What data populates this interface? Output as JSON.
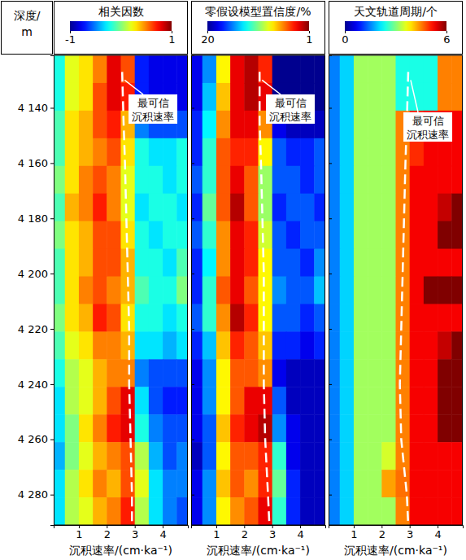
{
  "chart_data": [
    {
      "type": "heatmap",
      "title": "相关因数",
      "x_label": "沉积速率/(cm·ka⁻¹)",
      "y_label": [
        "深度/",
        "m"
      ],
      "xlim": [
        0.1,
        4.9
      ],
      "xticks": [
        1,
        2,
        3,
        4
      ],
      "ylim": [
        4121,
        4291
      ],
      "yticks": [
        {
          "value": 4140,
          "label": "4 140"
        },
        {
          "value": 4160,
          "label": "4 160"
        },
        {
          "value": 4180,
          "label": "4 180"
        },
        {
          "value": 4200,
          "label": "4 200"
        },
        {
          "value": 4220,
          "label": "4 220"
        },
        {
          "value": 4240,
          "label": "4 240"
        },
        {
          "value": 4260,
          "label": "4 260"
        },
        {
          "value": 4280,
          "label": "4 280"
        }
      ],
      "colorbar": {
        "range": [
          -1,
          1
        ],
        "ticks": [
          -1,
          1
        ]
      },
      "x_edges": [
        0.1,
        0.5,
        1,
        1.5,
        2,
        2.5,
        3,
        3.5,
        4,
        4.5,
        4.9
      ],
      "y_edges": [
        4121,
        4131,
        4141,
        4151,
        4161,
        4171,
        4181,
        4191,
        4201,
        4211,
        4221,
        4231,
        4241,
        4251,
        4261,
        4271,
        4281,
        4291
      ],
      "cells": [
        [
          -0.2,
          0.2,
          0.3,
          0.5,
          0.8,
          0.6,
          -0.7,
          -0.8,
          -0.8,
          -0.8
        ],
        [
          -0.2,
          0.2,
          0.3,
          0.6,
          0.8,
          0.7,
          -0.7,
          -0.8,
          -0.8,
          -0.8
        ],
        [
          -0.1,
          0.3,
          0.4,
          0.6,
          0.7,
          0.4,
          -0.5,
          -0.6,
          -0.6,
          -0.6
        ],
        [
          -0.1,
          0.3,
          0.4,
          0.5,
          0.6,
          0.3,
          -0.2,
          -0.3,
          -0.3,
          -0.2
        ],
        [
          0.0,
          0.3,
          0.5,
          0.6,
          0.5,
          0.2,
          -0.2,
          -0.2,
          -0.3,
          -0.2
        ],
        [
          -0.1,
          0.4,
          0.5,
          0.7,
          0.5,
          0.2,
          -0.3,
          -0.2,
          -0.2,
          -0.3
        ],
        [
          0.0,
          0.3,
          0.4,
          0.6,
          0.6,
          0.3,
          -0.2,
          -0.3,
          -0.2,
          -0.2
        ],
        [
          -0.1,
          0.3,
          0.4,
          0.6,
          0.6,
          0.4,
          -0.2,
          -0.2,
          -0.3,
          -0.1
        ],
        [
          -0.1,
          0.3,
          0.5,
          0.6,
          0.5,
          0.4,
          -0.1,
          -0.2,
          -0.2,
          0.0
        ],
        [
          0.0,
          0.3,
          0.4,
          0.7,
          0.6,
          0.3,
          -0.2,
          -0.2,
          -0.3,
          -0.2
        ],
        [
          -0.1,
          0.2,
          0.3,
          0.5,
          0.5,
          0.4,
          -0.3,
          -0.3,
          -0.4,
          -0.3
        ],
        [
          -0.2,
          0.1,
          0.2,
          0.4,
          0.5,
          0.5,
          -0.5,
          -0.6,
          -0.6,
          -0.6
        ],
        [
          -0.3,
          0.1,
          0.2,
          0.4,
          0.6,
          0.8,
          -0.3,
          -0.6,
          -0.7,
          -0.7
        ],
        [
          -0.3,
          0.0,
          0.3,
          0.5,
          0.7,
          0.8,
          -0.2,
          -0.5,
          -0.6,
          -0.6
        ],
        [
          -0.4,
          0.0,
          0.2,
          0.4,
          0.5,
          0.6,
          0.1,
          -0.4,
          -0.6,
          -0.5
        ],
        [
          -0.3,
          0.1,
          0.3,
          0.5,
          0.4,
          0.6,
          0.2,
          -0.3,
          -0.5,
          -0.5
        ],
        [
          -0.3,
          0.1,
          0.2,
          0.4,
          0.5,
          0.7,
          0.1,
          -0.3,
          -0.5,
          -0.6
        ]
      ],
      "line": {
        "x": [
          2.55,
          2.6,
          2.65,
          2.7,
          2.75,
          2.8,
          2.8,
          2.85,
          2.9,
          2.9
        ],
        "y": [
          4127,
          4145,
          4160,
          4180,
          4200,
          4220,
          4240,
          4260,
          4280,
          4291
        ]
      },
      "annotation": [
        "最可信",
        "沉积速率"
      ]
    },
    {
      "type": "heatmap",
      "title": "零假设模型置信度/%",
      "x_label": "沉积速率/(cm·ka⁻¹)",
      "tick_labels": "x",
      "xlim": [
        0.1,
        4.9
      ],
      "xticks": [
        1,
        2,
        3,
        4
      ],
      "ylim": [
        4121,
        4291
      ],
      "yticks": [
        {
          "value": 4140,
          "label": "4 140"
        },
        {
          "value": 4160,
          "label": "4 160"
        },
        {
          "value": 4180,
          "label": "4 180"
        },
        {
          "value": 4200,
          "label": "4 200"
        },
        {
          "value": 4220,
          "label": "4 220"
        },
        {
          "value": 4240,
          "label": "4 240"
        },
        {
          "value": 4260,
          "label": "4 260"
        },
        {
          "value": 4280,
          "label": "4 280"
        }
      ],
      "colorbar": {
        "range": [
          20,
          1
        ],
        "ticks": [
          20,
          1
        ]
      },
      "x_edges": [
        0.1,
        0.5,
        1,
        1.5,
        2,
        2.5,
        3,
        3.5,
        4,
        4.5,
        4.9
      ],
      "y_edges": [
        4121,
        4131,
        4141,
        4151,
        4161,
        4171,
        4181,
        4191,
        4201,
        4211,
        4221,
        4231,
        4241,
        4251,
        4261,
        4271,
        4281,
        4291
      ],
      "cells": [
        [
          18,
          15,
          8,
          3,
          2,
          4,
          20,
          20,
          20,
          20
        ],
        [
          18,
          14,
          7,
          3,
          2,
          3,
          20,
          20,
          20,
          20
        ],
        [
          17,
          13,
          6,
          3,
          3,
          6,
          18,
          19,
          19,
          19
        ],
        [
          17,
          12,
          5,
          4,
          4,
          8,
          16,
          17,
          17,
          16
        ],
        [
          16,
          12,
          5,
          3,
          5,
          10,
          16,
          16,
          17,
          16
        ],
        [
          17,
          11,
          5,
          2,
          5,
          10,
          17,
          16,
          16,
          17
        ],
        [
          16,
          12,
          6,
          3,
          4,
          9,
          16,
          17,
          16,
          16
        ],
        [
          17,
          13,
          6,
          3,
          4,
          8,
          16,
          16,
          17,
          15
        ],
        [
          17,
          12,
          5,
          3,
          5,
          8,
          15,
          16,
          16,
          14
        ],
        [
          16,
          12,
          6,
          2,
          4,
          8,
          16,
          16,
          17,
          16
        ],
        [
          17,
          14,
          7,
          4,
          5,
          7,
          17,
          17,
          18,
          17
        ],
        [
          18,
          15,
          8,
          5,
          5,
          6,
          18,
          19,
          19,
          19
        ],
        [
          18,
          15,
          8,
          5,
          3,
          3,
          16,
          19,
          19,
          19
        ],
        [
          18,
          16,
          7,
          4,
          3,
          2,
          15,
          18,
          19,
          19
        ],
        [
          19,
          16,
          8,
          5,
          5,
          4,
          12,
          18,
          19,
          19
        ],
        [
          18,
          15,
          7,
          5,
          6,
          4,
          11,
          17,
          19,
          19
        ],
        [
          18,
          15,
          8,
          6,
          5,
          3,
          12,
          17,
          19,
          19
        ]
      ],
      "line": {
        "x": [
          2.55,
          2.55,
          2.6,
          2.65,
          2.7,
          2.7,
          2.7,
          2.75,
          2.85,
          2.9
        ],
        "y": [
          4127,
          4145,
          4160,
          4180,
          4200,
          4220,
          4240,
          4260,
          4280,
          4291
        ]
      },
      "annotation": [
        "最可信",
        "沉积速率"
      ]
    },
    {
      "type": "heatmap",
      "title": "天文轨道周期/个",
      "x_label": "沉积速率/(cm·ka⁻¹)",
      "tick_labels": "x",
      "xlim": [
        0.1,
        4.9
      ],
      "xticks": [
        1,
        2,
        3,
        4
      ],
      "ylim": [
        4121,
        4291
      ],
      "yticks": [
        {
          "value": 4140,
          "label": "4 140"
        },
        {
          "value": 4160,
          "label": "4 160"
        },
        {
          "value": 4180,
          "label": "4 180"
        },
        {
          "value": 4200,
          "label": "4 200"
        },
        {
          "value": 4220,
          "label": "4 220"
        },
        {
          "value": 4240,
          "label": "4 240"
        },
        {
          "value": 4260,
          "label": "4 260"
        },
        {
          "value": 4280,
          "label": "4 280"
        }
      ],
      "colorbar": {
        "range": [
          0,
          6
        ],
        "ticks": [
          0,
          6
        ]
      },
      "x_edges": [
        0.1,
        0.5,
        1,
        1.5,
        2,
        2.5,
        3,
        3.5,
        4,
        4.5,
        4.9
      ],
      "y_edges": [
        4121,
        4131,
        4141,
        4151,
        4161,
        4171,
        4181,
        4191,
        4201,
        4211,
        4221,
        4231,
        4241,
        4251,
        4261,
        4271,
        4281,
        4291
      ],
      "cells": [
        [
          1.5,
          2,
          3.2,
          3.2,
          3.2,
          2.4,
          2.4,
          2.4,
          4.5,
          4.5
        ],
        [
          1.5,
          2,
          3.2,
          3.2,
          3.2,
          2.4,
          2.4,
          2.4,
          4.5,
          4.5
        ],
        [
          1.5,
          2,
          3.2,
          3.2,
          3.2,
          4.5,
          5,
          5.3,
          5.3,
          5.3
        ],
        [
          1.5,
          2,
          3.2,
          3.2,
          3.2,
          4.5,
          5,
          5.3,
          5.3,
          5.3
        ],
        [
          1.5,
          2,
          3.2,
          3.2,
          3.2,
          4.5,
          5.3,
          5.3,
          5.3,
          5.3
        ],
        [
          1.5,
          2,
          3.2,
          3.2,
          3.2,
          4.5,
          5.3,
          5.3,
          5.6,
          6
        ],
        [
          1.5,
          2,
          3.2,
          3.2,
          3.2,
          4.5,
          5.3,
          5.3,
          6,
          6
        ],
        [
          1.5,
          2,
          3.2,
          3.2,
          3.2,
          4.5,
          5.3,
          5.3,
          5.3,
          5.3
        ],
        [
          1.5,
          2,
          3.2,
          3.2,
          3.2,
          4.5,
          5.3,
          6,
          6,
          6
        ],
        [
          1.5,
          2,
          3.2,
          3.2,
          3.2,
          4.5,
          5.3,
          5.3,
          5.3,
          5.3
        ],
        [
          1.5,
          2,
          3.2,
          3.2,
          3.2,
          4.5,
          5.3,
          5.3,
          5.6,
          6
        ],
        [
          1.5,
          2,
          3.2,
          3.2,
          3.2,
          4.5,
          5.3,
          5.3,
          6,
          6
        ],
        [
          1.5,
          2,
          3.2,
          3.2,
          3.2,
          4.5,
          5.3,
          5.3,
          6,
          6
        ],
        [
          1.5,
          2,
          3.2,
          3.2,
          3.2,
          4.5,
          5.3,
          5.3,
          6,
          6
        ],
        [
          1.5,
          2,
          3.2,
          3.2,
          3.5,
          4.5,
          5.3,
          5.3,
          5.3,
          5.3
        ],
        [
          1.5,
          2,
          3.2,
          3.2,
          4.3,
          4.6,
          5.3,
          5.3,
          5.3,
          5.3
        ],
        [
          1.5,
          2,
          3.2,
          3.2,
          3.2,
          4.5,
          5.3,
          5.3,
          5.3,
          5.3
        ]
      ],
      "line": {
        "x": [
          2.95,
          2.9,
          2.85,
          2.8,
          2.75,
          2.7,
          2.65,
          2.7,
          2.9,
          2.95
        ],
        "y": [
          4127,
          4145,
          4160,
          4180,
          4200,
          4220,
          4240,
          4260,
          4280,
          4291
        ]
      },
      "annotation": [
        "最可信",
        "沉积速率"
      ]
    }
  ]
}
